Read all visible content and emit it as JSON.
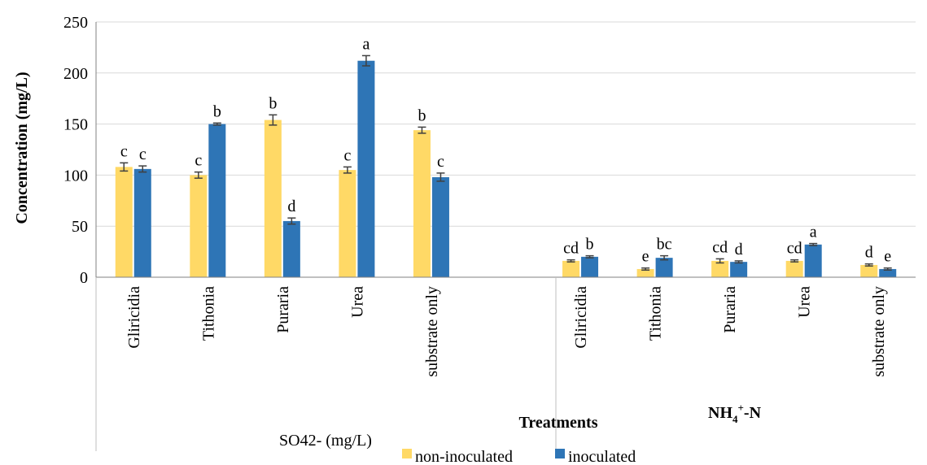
{
  "chart_data": {
    "type": "bar",
    "ylabel": "Concentration (mg/L)",
    "xlabel": "Treatments",
    "ylim": [
      0,
      250
    ],
    "yticks": [
      0,
      50,
      100,
      150,
      200,
      250
    ],
    "grid": true,
    "legend_position": "bottom",
    "series": [
      {
        "name": "non-inoculated",
        "color": "#FFD966"
      },
      {
        "name": "inoculated",
        "color": "#2E75B6"
      }
    ],
    "groups": [
      {
        "label": "SO42- (mg/L)",
        "categories": [
          "Gliricidia",
          "Tithonia",
          "Puraria",
          "Urea",
          "substrate only"
        ],
        "non_inoculated": [
          108,
          100,
          154,
          105,
          144
        ],
        "inoculated": [
          106,
          150,
          55,
          212,
          98
        ],
        "non_inoculated_err": [
          4,
          3,
          5,
          3,
          3
        ],
        "inoculated_err": [
          3,
          1,
          3,
          5,
          4
        ],
        "non_inoculated_sig": [
          "c",
          "c",
          "b",
          "c",
          "b"
        ],
        "inoculated_sig": [
          "c",
          "b",
          "d",
          "a",
          "c"
        ]
      },
      {
        "label_main": "NH",
        "label_sub": "4",
        "label_sup": "+",
        "label_tail": "-N",
        "categories": [
          "Gliricidia",
          "Tithonia",
          "Puraria",
          "Urea",
          "substrate only"
        ],
        "non_inoculated": [
          16,
          8,
          16,
          16,
          12
        ],
        "inoculated": [
          20,
          19,
          15,
          32,
          8
        ],
        "non_inoculated_err": [
          1,
          1,
          2,
          1,
          1
        ],
        "inoculated_err": [
          1,
          2,
          1,
          1,
          1
        ],
        "non_inoculated_sig": [
          "cd",
          "e",
          "cd",
          "cd",
          "d"
        ],
        "inoculated_sig": [
          "b",
          "bc",
          "d",
          "a",
          "e"
        ]
      }
    ]
  }
}
